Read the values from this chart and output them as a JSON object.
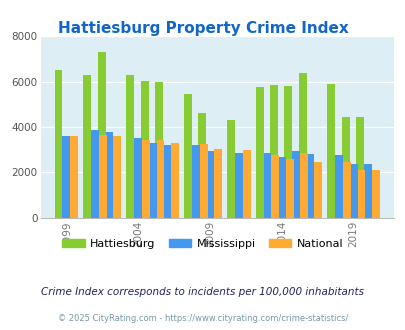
{
  "title": "Hattiesburg Property Crime Index",
  "subtitle": "Crime Index corresponds to incidents per 100,000 inhabitants",
  "footer": "© 2025 CityRating.com - https://www.cityrating.com/crime-statistics/",
  "years": [
    1999,
    2001,
    2002,
    2004,
    2005,
    2006,
    2008,
    2009,
    2011,
    2013,
    2014,
    2015,
    2016,
    2018,
    2019,
    2020
  ],
  "hattiesburg": [
    6500,
    6300,
    7300,
    6300,
    6050,
    6000,
    5450,
    4600,
    4300,
    5750,
    5850,
    5800,
    6400,
    5900,
    4450,
    4450
  ],
  "mississippi": [
    3600,
    3850,
    3800,
    3500,
    3300,
    3200,
    3200,
    2950,
    2870,
    2850,
    2700,
    2950,
    2830,
    2750,
    2350,
    2350
  ],
  "national": [
    3600,
    3650,
    3600,
    3450,
    3450,
    3300,
    3250,
    3050,
    3000,
    2750,
    2600,
    2870,
    2470,
    2470,
    2120,
    2120
  ],
  "bar_colors": {
    "hattiesburg": "#88cc33",
    "mississippi": "#4499ee",
    "national": "#ffaa33"
  },
  "bg_color": "#ddeef5",
  "ylim": [
    0,
    8000
  ],
  "yticks": [
    0,
    2000,
    4000,
    6000,
    8000
  ],
  "xlabel_years": [
    1999,
    2004,
    2009,
    2014,
    2019
  ],
  "title_color": "#1166cc",
  "subtitle_color": "#222266",
  "footer_color": "#7799aa"
}
